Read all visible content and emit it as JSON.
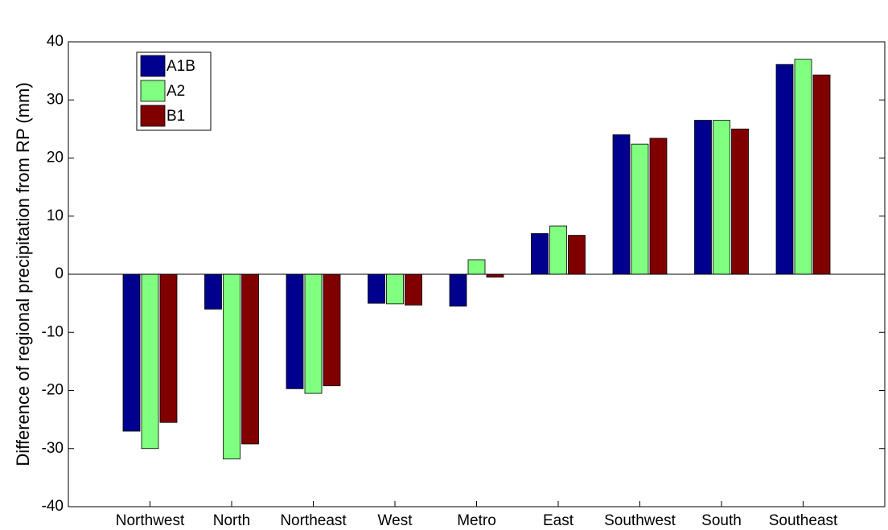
{
  "chart_data": {
    "type": "bar",
    "y_label": "Difference of regional precipitation from RP (mm)",
    "categories": [
      "Northwest",
      "North",
      "Northeast",
      "West",
      "Metro",
      "East",
      "Southwest",
      "South",
      "Southeast"
    ],
    "series": [
      {
        "name": "A1B",
        "color": "#00008f",
        "values": [
          -27,
          -6,
          -19.7,
          -5,
          -5.5,
          7,
          24,
          26.5,
          36.1
        ]
      },
      {
        "name": "A2",
        "color": "#80ff80",
        "values": [
          -30,
          -31.8,
          -20.5,
          -5.1,
          2.5,
          8.3,
          22.4,
          26.5,
          37
        ]
      },
      {
        "name": "B1",
        "color": "#800000",
        "values": [
          -25.5,
          -29.2,
          -19.2,
          -5.3,
          -0.5,
          6.7,
          23.4,
          25,
          34.3
        ]
      }
    ],
    "ylim": [
      -40,
      40
    ],
    "yticks": [
      -40,
      -30,
      -20,
      -10,
      0,
      10,
      20,
      30,
      40
    ],
    "grid": false,
    "legend": "upper-left"
  }
}
